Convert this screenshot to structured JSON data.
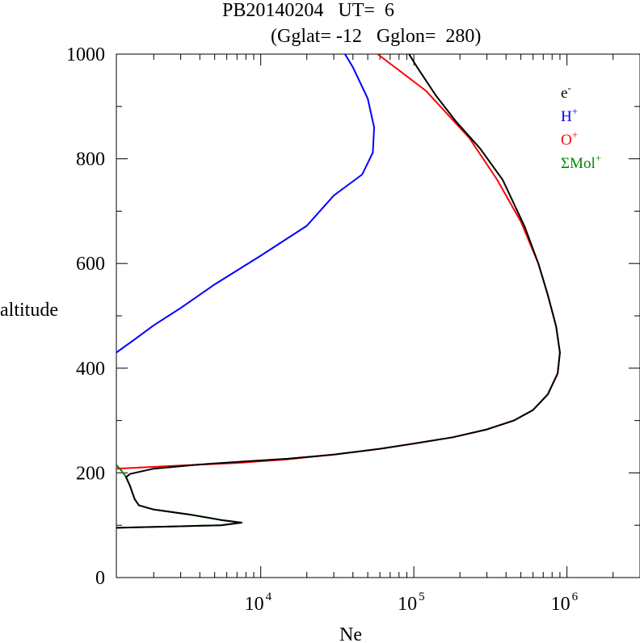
{
  "chart_data": {
    "type": "line",
    "title": "PB20140204   UT=  6",
    "subtitle": "(Gglat= -12   Gglon=  280)",
    "xlabel": "Ne",
    "ylabel": "altitude",
    "x_scale": "log",
    "xlim": [
      1140,
      3000000
    ],
    "ylim": [
      0,
      1000
    ],
    "x_ticks": [
      {
        "value": 10000,
        "base": "10",
        "exp": "4"
      },
      {
        "value": 100000,
        "base": "10",
        "exp": "5"
      },
      {
        "value": 1000000,
        "base": "10",
        "exp": "6"
      }
    ],
    "y_ticks": [
      "0",
      "200",
      "400",
      "600",
      "800",
      "1000"
    ],
    "grid": false,
    "legend_position": "top-right",
    "legend": [
      {
        "base": "e",
        "sup": "-",
        "color": "#000000"
      },
      {
        "base": "H",
        "sup": "+",
        "color": "#0000ff"
      },
      {
        "base": "O",
        "sup": "+",
        "color": "#ff0000"
      },
      {
        "base": "ΣMol",
        "sup": "+",
        "color": "#008800"
      }
    ],
    "series": [
      {
        "color": "#0000ff",
        "points": [
          [
            1140,
            430
          ],
          [
            1500,
            455
          ],
          [
            2000,
            482
          ],
          [
            3000,
            515
          ],
          [
            5000,
            560
          ],
          [
            10000,
            615
          ],
          [
            20000,
            672
          ],
          [
            30000,
            730
          ],
          [
            46000,
            770
          ],
          [
            54000,
            812
          ],
          [
            55000,
            860
          ],
          [
            50000,
            915
          ],
          [
            40000,
            975
          ],
          [
            35500,
            1000
          ]
        ]
      },
      {
        "color": "#ff0000",
        "points": [
          [
            1140,
            208
          ],
          [
            3000,
            214
          ],
          [
            7000,
            219
          ],
          [
            15000,
            226
          ],
          [
            30000,
            235
          ],
          [
            60000,
            246
          ],
          [
            100000,
            256
          ],
          [
            180000,
            268
          ],
          [
            300000,
            283
          ],
          [
            450000,
            300
          ],
          [
            600000,
            320
          ],
          [
            750000,
            350
          ],
          [
            870000,
            390
          ],
          [
            900000,
            430
          ],
          [
            850000,
            480
          ],
          [
            750000,
            540
          ],
          [
            650000,
            600
          ],
          [
            500000,
            680
          ],
          [
            350000,
            760
          ],
          [
            230000,
            840
          ],
          [
            120000,
            930
          ],
          [
            58000,
            1000
          ]
        ]
      },
      {
        "color": "#008800",
        "points": [
          [
            1140,
            215
          ],
          [
            1200,
            208
          ],
          [
            1300,
            195
          ],
          [
            1400,
            175
          ],
          [
            1500,
            150
          ],
          [
            1600,
            138
          ],
          [
            2000,
            130
          ],
          [
            3500,
            120
          ],
          [
            5500,
            110
          ],
          [
            7500,
            105
          ],
          [
            5500,
            100
          ],
          [
            3000,
            98
          ],
          [
            1140,
            95
          ]
        ]
      },
      {
        "color": "#000000",
        "points": [
          [
            1140,
            95
          ],
          [
            3000,
            98
          ],
          [
            5500,
            100
          ],
          [
            7500,
            105
          ],
          [
            5500,
            110
          ],
          [
            3500,
            120
          ],
          [
            2000,
            130
          ],
          [
            1600,
            138
          ],
          [
            1500,
            150
          ],
          [
            1400,
            175
          ],
          [
            1320,
            192
          ],
          [
            1400,
            198
          ],
          [
            2000,
            208
          ],
          [
            4000,
            216
          ],
          [
            8000,
            222
          ],
          [
            15000,
            227
          ],
          [
            30000,
            235
          ],
          [
            60000,
            246
          ],
          [
            100000,
            256
          ],
          [
            180000,
            268
          ],
          [
            300000,
            283
          ],
          [
            450000,
            300
          ],
          [
            600000,
            320
          ],
          [
            750000,
            350
          ],
          [
            870000,
            390
          ],
          [
            900000,
            430
          ],
          [
            850000,
            480
          ],
          [
            750000,
            540
          ],
          [
            650000,
            600
          ],
          [
            530000,
            670
          ],
          [
            380000,
            760
          ],
          [
            270000,
            820
          ],
          [
            190000,
            870
          ],
          [
            140000,
            920
          ],
          [
            105000,
            975
          ],
          [
            93000,
            1000
          ]
        ]
      }
    ]
  }
}
